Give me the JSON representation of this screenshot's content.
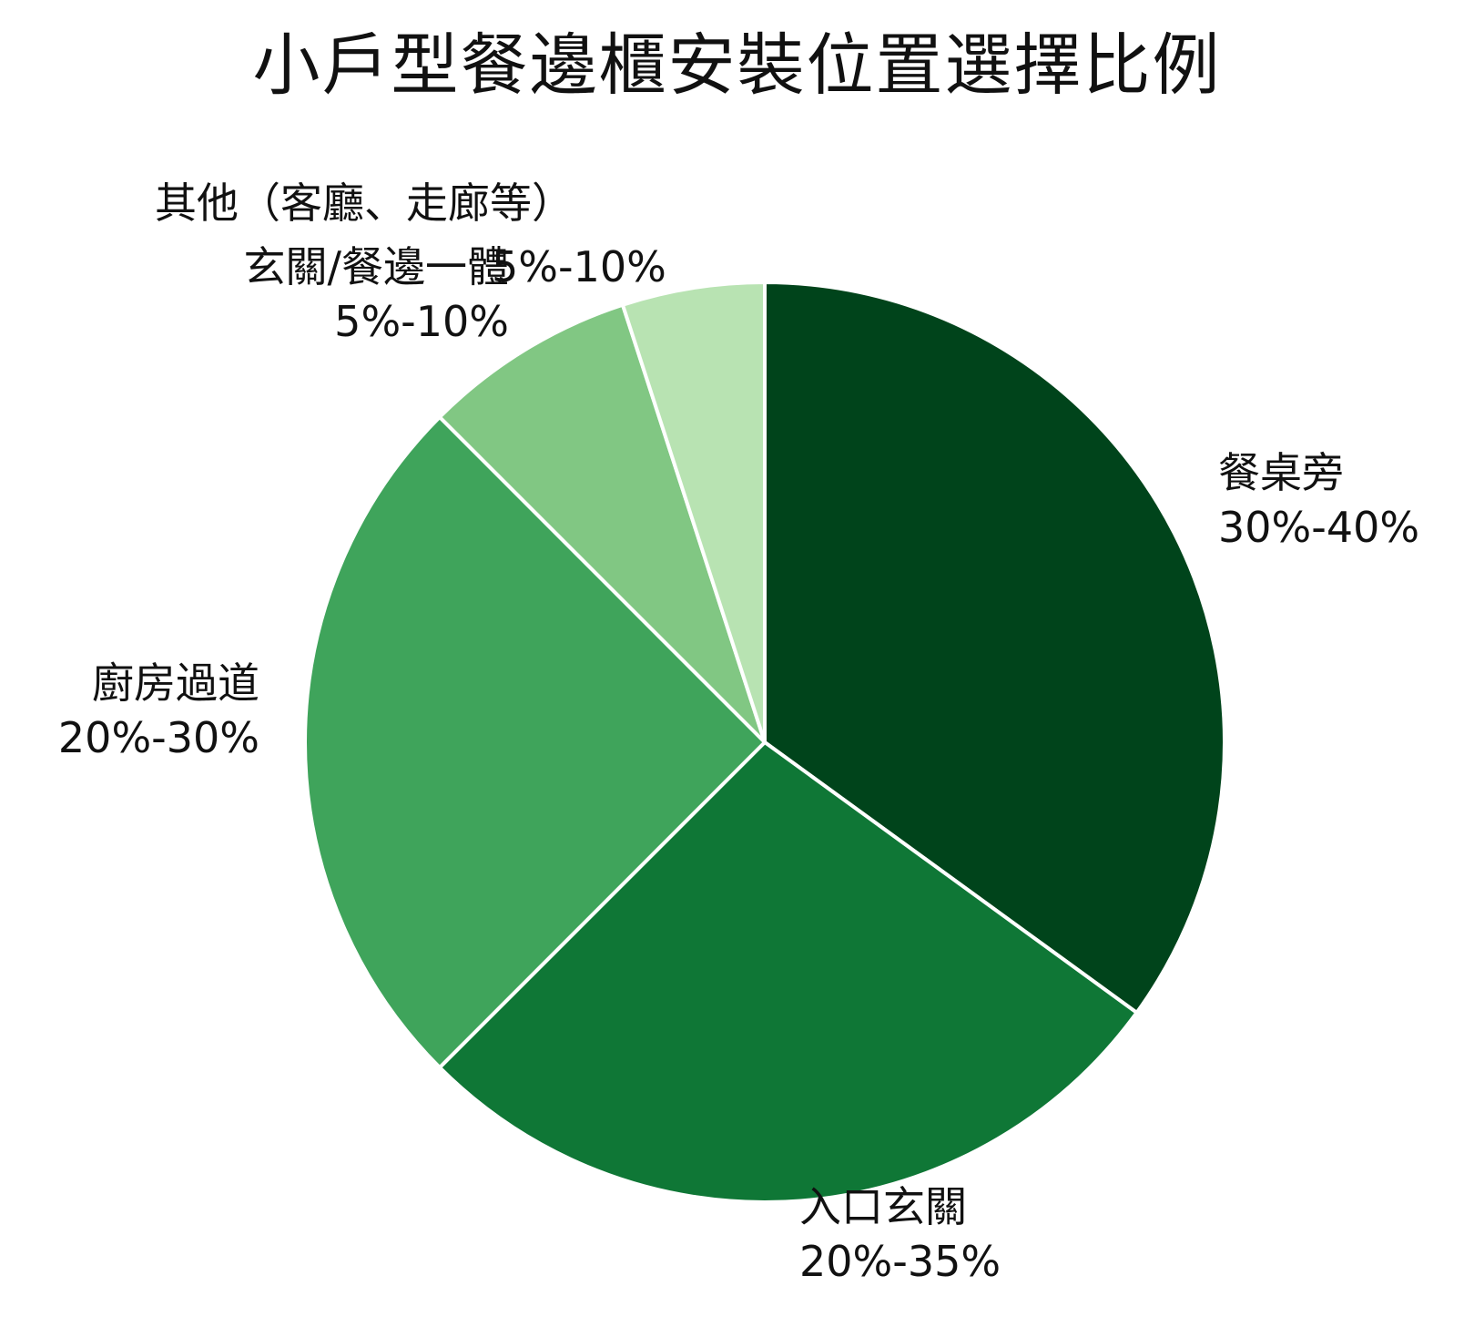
{
  "chart_data": {
    "type": "pie",
    "title": "小戶型餐邊櫃安裝位置選擇比例",
    "slices": [
      {
        "label": "餐桌旁",
        "range_text": "30%-40%",
        "value": 35,
        "color": "#00441b"
      },
      {
        "label": "入口玄關",
        "range_text": "20%-35%",
        "value": 27.5,
        "color": "#0f7736"
      },
      {
        "label": "廚房過道",
        "range_text": "20%-30%",
        "value": 25,
        "color": "#3fa45b"
      },
      {
        "label": "玄關/餐邊一體",
        "range_text": "5%-10%",
        "value": 7.5,
        "color": "#81c783"
      },
      {
        "label": "其他（客廳、走廊等）",
        "range_text": "5%-10%",
        "value": 5,
        "color": "#b8e3b2"
      }
    ],
    "legend": "none",
    "start_angle": "12 o'clock",
    "direction": "clockwise"
  }
}
